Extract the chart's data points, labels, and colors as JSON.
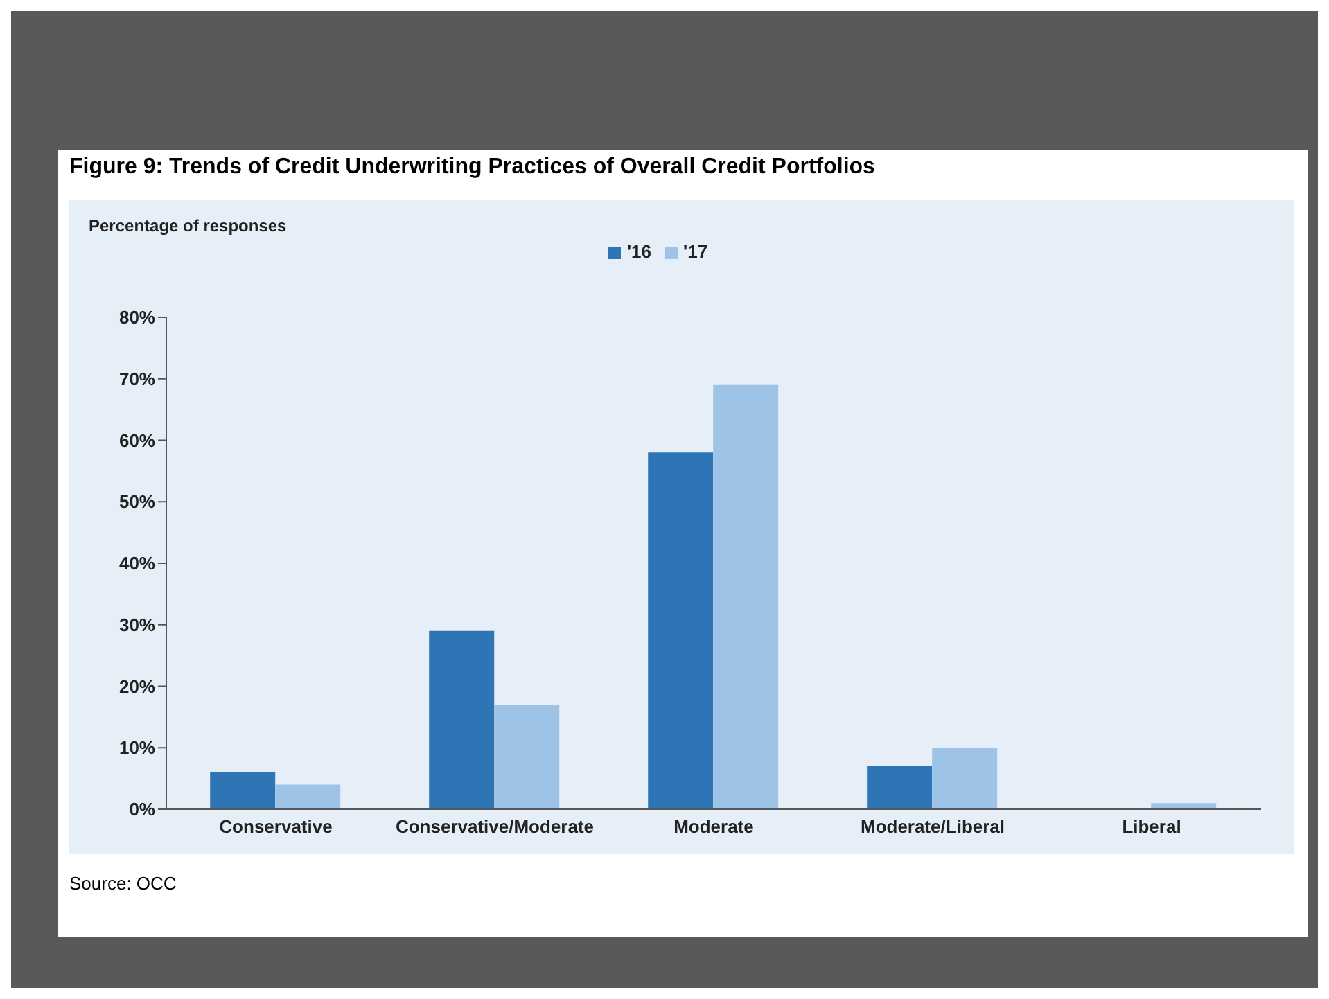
{
  "chart_data": {
    "type": "bar",
    "title": "Figure 9: Trends of Credit Underwriting Practices of Overall Credit Portfolios",
    "ylabel": "Percentage of responses",
    "categories": [
      "Conservative",
      "Conservative/Moderate",
      "Moderate",
      "Moderate/Liberal",
      "Liberal"
    ],
    "series": [
      {
        "name": "'16",
        "color": "#2e75b6",
        "values": [
          6,
          29,
          58,
          7,
          0
        ]
      },
      {
        "name": "'17",
        "color": "#9dc3e6",
        "values": [
          4,
          17,
          69,
          10,
          1
        ]
      }
    ],
    "ylim": [
      0,
      80
    ],
    "yticks": [
      {
        "value": 0,
        "label": "0%"
      },
      {
        "value": 10,
        "label": "10%"
      },
      {
        "value": 20,
        "label": "20%"
      },
      {
        "value": 30,
        "label": "30%"
      },
      {
        "value": 40,
        "label": "40%"
      },
      {
        "value": 50,
        "label": "50%"
      },
      {
        "value": 60,
        "label": "60%"
      },
      {
        "value": 70,
        "label": "70%"
      },
      {
        "value": 80,
        "label": "80%"
      }
    ],
    "grid": false,
    "legend": "top",
    "annotations": [
      "Source: OCC"
    ]
  }
}
